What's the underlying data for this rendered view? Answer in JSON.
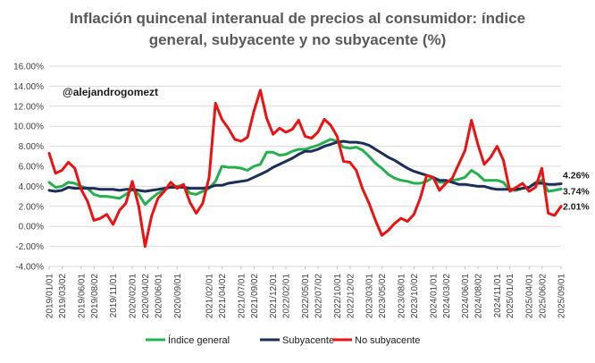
{
  "chart_data": {
    "type": "line",
    "title_lines": [
      "Inflación quincenal interanual de precios al consumidor: índice",
      "general, subyacente y no subyacente (%)"
    ],
    "annotation": "@alejandrogomezt",
    "ylim": [
      -4,
      16
    ],
    "y_ticks": [
      "16.00%",
      "14.00%",
      "12.00%",
      "10.00%",
      "8.00%",
      "6.00%",
      "4.00%",
      "2.00%",
      "0.00%",
      "-2.00%",
      "-4.00%"
    ],
    "x_ticks": [
      "2019/01/01",
      "2019/03/02",
      "2019/06/01",
      "2019/08/02",
      "2019/11/01",
      "2020/02/01",
      "2020/04/02",
      "2020/06/01",
      "2020/09/01",
      "2021/02/01",
      "2021/04/02",
      "2021/07/01",
      "2021/09/02",
      "2021/12/01",
      "2022/02/01",
      "2022/05/01",
      "2022/07/02",
      "2022/10/01",
      "2022/12/02",
      "2023/03/01",
      "2023/05/02",
      "2023/08/01",
      "2023/10/02",
      "2024/01/01",
      "2024/03/02",
      "2024/06/01",
      "2024/08/02",
      "2024/11/01",
      "2025/01/01",
      "2025/04/01",
      "2025/06/02",
      "2025/09/01"
    ],
    "grid": true,
    "legend_position": "bottom",
    "series": [
      {
        "name": "Índice general",
        "color": "#22b14c",
        "end_label": "3.74%",
        "x": [
          "2019/01",
          "2019/02",
          "2019/03",
          "2019/04",
          "2019/05",
          "2019/06",
          "2019/07",
          "2019/08",
          "2019/09",
          "2019/10",
          "2019/11",
          "2019/12",
          "2020/01",
          "2020/02",
          "2020/03",
          "2020/04",
          "2020/05",
          "2020/06",
          "2020/07",
          "2020/08",
          "2020/09",
          "2020/10",
          "2020/11",
          "2020/12",
          "2021/01",
          "2021/02",
          "2021/03",
          "2021/04",
          "2021/05",
          "2021/06",
          "2021/07",
          "2021/08",
          "2021/09",
          "2021/10",
          "2021/11",
          "2021/12",
          "2022/01",
          "2022/02",
          "2022/03",
          "2022/04",
          "2022/05",
          "2022/06",
          "2022/07",
          "2022/08",
          "2022/09",
          "2022/10",
          "2022/11",
          "2022/12",
          "2023/01",
          "2023/02",
          "2023/03",
          "2023/04",
          "2023/05",
          "2023/06",
          "2023/07",
          "2023/08",
          "2023/09",
          "2023/10",
          "2023/11",
          "2023/12",
          "2024/01",
          "2024/02",
          "2024/03",
          "2024/04",
          "2024/05",
          "2024/06",
          "2024/07",
          "2024/08",
          "2024/09",
          "2024/10",
          "2024/11",
          "2024/12",
          "2025/01",
          "2025/02",
          "2025/03",
          "2025/04",
          "2025/05",
          "2025/06",
          "2025/07",
          "2025/08",
          "2025/09"
        ],
        "values": [
          4.4,
          3.9,
          4.0,
          4.4,
          4.3,
          4.0,
          3.8,
          3.2,
          3.0,
          3.0,
          2.9,
          2.8,
          3.2,
          3.7,
          3.2,
          2.2,
          2.8,
          3.3,
          3.6,
          4.0,
          4.0,
          4.1,
          3.3,
          3.2,
          3.5,
          3.8,
          4.5,
          6.0,
          5.9,
          5.9,
          5.8,
          5.6,
          6.0,
          6.2,
          7.4,
          7.4,
          7.1,
          7.2,
          7.5,
          7.7,
          7.7,
          7.9,
          8.1,
          8.4,
          8.7,
          8.5,
          7.9,
          7.8,
          7.9,
          7.6,
          7.0,
          6.3,
          5.8,
          5.2,
          4.8,
          4.6,
          4.5,
          4.3,
          4.3,
          4.5,
          4.9,
          4.4,
          4.4,
          4.6,
          4.7,
          4.9,
          5.6,
          5.2,
          4.6,
          4.6,
          4.6,
          4.4,
          3.6,
          3.6,
          3.8,
          3.9,
          4.4,
          4.6,
          3.5,
          3.6,
          3.74
        ]
      },
      {
        "name": "Subyacente",
        "color": "#1b2e5a",
        "end_label": "4.26%",
        "x": [
          "2019/01",
          "2019/02",
          "2019/03",
          "2019/04",
          "2019/05",
          "2019/06",
          "2019/07",
          "2019/08",
          "2019/09",
          "2019/10",
          "2019/11",
          "2019/12",
          "2020/01",
          "2020/02",
          "2020/03",
          "2020/04",
          "2020/05",
          "2020/06",
          "2020/07",
          "2020/08",
          "2020/09",
          "2020/10",
          "2020/11",
          "2020/12",
          "2021/01",
          "2021/02",
          "2021/03",
          "2021/04",
          "2021/05",
          "2021/06",
          "2021/07",
          "2021/08",
          "2021/09",
          "2021/10",
          "2021/11",
          "2021/12",
          "2022/01",
          "2022/02",
          "2022/03",
          "2022/04",
          "2022/05",
          "2022/06",
          "2022/07",
          "2022/08",
          "2022/09",
          "2022/10",
          "2022/11",
          "2022/12",
          "2023/01",
          "2023/02",
          "2023/03",
          "2023/04",
          "2023/05",
          "2023/06",
          "2023/07",
          "2023/08",
          "2023/09",
          "2023/10",
          "2023/11",
          "2023/12",
          "2024/01",
          "2024/02",
          "2024/03",
          "2024/04",
          "2024/05",
          "2024/06",
          "2024/07",
          "2024/08",
          "2024/09",
          "2024/10",
          "2024/11",
          "2024/12",
          "2025/01",
          "2025/02",
          "2025/03",
          "2025/04",
          "2025/05",
          "2025/06",
          "2025/07",
          "2025/08",
          "2025/09"
        ],
        "values": [
          3.6,
          3.5,
          3.6,
          3.9,
          3.8,
          3.8,
          3.8,
          3.8,
          3.7,
          3.7,
          3.7,
          3.6,
          3.7,
          3.7,
          3.6,
          3.5,
          3.6,
          3.7,
          3.8,
          3.9,
          3.9,
          3.9,
          3.8,
          3.8,
          3.8,
          3.9,
          4.1,
          4.1,
          4.3,
          4.4,
          4.5,
          4.6,
          4.9,
          5.2,
          5.5,
          5.9,
          6.2,
          6.5,
          6.8,
          7.2,
          7.5,
          7.5,
          7.7,
          8.0,
          8.2,
          8.4,
          8.5,
          8.4,
          8.4,
          8.3,
          8.1,
          7.7,
          7.3,
          6.9,
          6.6,
          6.2,
          5.8,
          5.5,
          5.3,
          5.1,
          4.9,
          4.6,
          4.6,
          4.4,
          4.2,
          4.2,
          4.1,
          4.0,
          4.0,
          3.8,
          3.7,
          3.7,
          3.7,
          3.7,
          3.8,
          3.9,
          4.3,
          4.3,
          4.2,
          4.2,
          4.26
        ]
      },
      {
        "name": "No subyacente",
        "color": "#ee1111",
        "end_label": "2.01%",
        "x": [
          "2019/01",
          "2019/02",
          "2019/03",
          "2019/04",
          "2019/05",
          "2019/06",
          "2019/07",
          "2019/08",
          "2019/09",
          "2019/10",
          "2019/11",
          "2019/12",
          "2020/01",
          "2020/02",
          "2020/03",
          "2020/04",
          "2020/05",
          "2020/06",
          "2020/07",
          "2020/08",
          "2020/09",
          "2020/10",
          "2020/11",
          "2020/12",
          "2021/01",
          "2021/02",
          "2021/03",
          "2021/04",
          "2021/05",
          "2021/06",
          "2021/07",
          "2021/08",
          "2021/09",
          "2021/10",
          "2021/11",
          "2021/12",
          "2022/01",
          "2022/02",
          "2022/03",
          "2022/04",
          "2022/05",
          "2022/06",
          "2022/07",
          "2022/08",
          "2022/09",
          "2022/10",
          "2022/11",
          "2022/12",
          "2023/01",
          "2023/02",
          "2023/03",
          "2023/04",
          "2023/05",
          "2023/06",
          "2023/07",
          "2023/08",
          "2023/09",
          "2023/10",
          "2023/11",
          "2023/12",
          "2024/01",
          "2024/02",
          "2024/03",
          "2024/04",
          "2024/05",
          "2024/06",
          "2024/07",
          "2024/08",
          "2024/09",
          "2024/10",
          "2024/11",
          "2024/12",
          "2025/01",
          "2025/02",
          "2025/03",
          "2025/04",
          "2025/05",
          "2025/06",
          "2025/07",
          "2025/08",
          "2025/09"
        ],
        "values": [
          7.3,
          5.3,
          5.6,
          6.4,
          5.8,
          3.7,
          2.5,
          0.6,
          0.8,
          1.2,
          0.2,
          1.6,
          2.3,
          4.5,
          2.0,
          -2.0,
          1.0,
          2.8,
          3.5,
          4.4,
          3.8,
          4.2,
          2.4,
          1.3,
          2.3,
          4.9,
          12.3,
          10.7,
          9.8,
          8.7,
          8.5,
          8.9,
          11.5,
          13.6,
          10.8,
          9.2,
          9.8,
          9.4,
          9.7,
          10.6,
          9.0,
          8.8,
          9.4,
          10.7,
          10.1,
          9.0,
          6.5,
          6.4,
          5.6,
          3.7,
          2.3,
          0.6,
          -0.9,
          -0.4,
          0.3,
          0.8,
          0.5,
          1.2,
          2.8,
          5.1,
          4.9,
          3.6,
          4.3,
          4.8,
          6.2,
          7.6,
          10.6,
          8.2,
          6.2,
          6.9,
          8.0,
          6.6,
          3.5,
          3.9,
          4.3,
          3.5,
          3.9,
          5.8,
          1.3,
          1.1,
          2.01
        ]
      }
    ]
  }
}
